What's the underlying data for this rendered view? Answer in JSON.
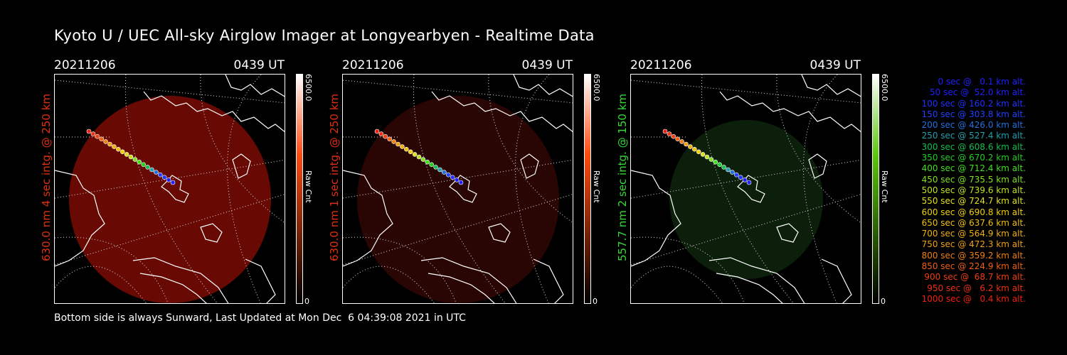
{
  "title": "Kyoto U / UEC All-sky Airglow Imager at Longyearbyen - Realtime Data",
  "footer": "Bottom side is always Sunward, Last Updated at Mon Dec  6 04:39:08 2021 in UTC",
  "panels": [
    {
      "date": "20211206",
      "time": "0439 UT",
      "side_label": "630.0 nm 4 sec intg. @ 250 km",
      "side_color": "#e03010",
      "cbar_max": "6500.0",
      "cbar_unit": "Raw Cnt",
      "cbar_min": "0",
      "glow_color": "#7a0c04",
      "glow_opacity": 0.85,
      "bar_color": "#ff4a10"
    },
    {
      "date": "20211206",
      "time": "0439 UT",
      "side_label": "630.0 nm 1 sec intg. @ 250 km",
      "side_color": "#e03010",
      "cbar_max": "6500.0",
      "cbar_unit": "Raw Cnt",
      "cbar_min": "0",
      "glow_color": "#3a0704",
      "glow_opacity": 0.7,
      "bar_color": "#ff4a10"
    },
    {
      "date": "20211206",
      "time": "0439 UT",
      "side_label": "557.7 nm 2 sec intg. @ 150 km",
      "side_color": "#38d838",
      "cbar_max": "6500.0",
      "cbar_unit": "Raw Cnt",
      "cbar_min": "0",
      "glow_color": "#0f2a0f",
      "glow_opacity": 0.75,
      "bar_color": "#5ac80a"
    }
  ],
  "legend": [
    {
      "text": "   0 sec @   0.1 km alt.",
      "color": "#2020ff"
    },
    {
      "text": "  50 sec @  52.0 km alt.",
      "color": "#2020ff"
    },
    {
      "text": " 100 sec @ 160.2 km alt.",
      "color": "#2030ff"
    },
    {
      "text": " 150 sec @ 303.8 km alt.",
      "color": "#2040ff"
    },
    {
      "text": " 200 sec @ 426.0 km alt.",
      "color": "#2070e0"
    },
    {
      "text": " 250 sec @ 527.4 km alt.",
      "color": "#20a0b0"
    },
    {
      "text": " 300 sec @ 608.6 km alt.",
      "color": "#10c050"
    },
    {
      "text": " 350 sec @ 670.2 km alt.",
      "color": "#20d020"
    },
    {
      "text": " 400 sec @ 712.4 km alt.",
      "color": "#40e020"
    },
    {
      "text": " 450 sec @ 735.5 km alt.",
      "color": "#80e020"
    },
    {
      "text": " 500 sec @ 739.6 km alt.",
      "color": "#c0e020"
    },
    {
      "text": " 550 sec @ 724.7 km alt.",
      "color": "#e0e020"
    },
    {
      "text": " 600 sec @ 690.8 km alt.",
      "color": "#f0d010"
    },
    {
      "text": " 650 sec @ 637.6 km alt.",
      "color": "#f0c010"
    },
    {
      "text": " 700 sec @ 564.9 km alt.",
      "color": "#f0b010"
    },
    {
      "text": " 750 sec @ 472.3 km alt.",
      "color": "#f0a010"
    },
    {
      "text": " 800 sec @ 359.2 km alt.",
      "color": "#f08010"
    },
    {
      "text": " 850 sec @ 224.9 km alt.",
      "color": "#f06010"
    },
    {
      "text": " 900 sec @  68.7 km alt.",
      "color": "#f04010"
    },
    {
      "text": " 950 sec @   6.2 km alt.",
      "color": "#f03010"
    },
    {
      "text": "1000 sec @   0.4 km alt.",
      "color": "#f02010"
    }
  ]
}
